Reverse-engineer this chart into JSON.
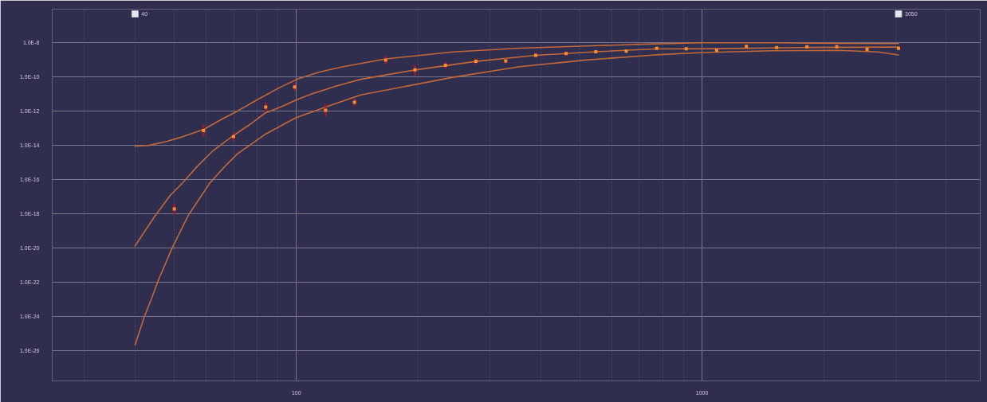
{
  "chart_data": {
    "type": "scatter",
    "log": "xy",
    "grid": true,
    "marker": "square",
    "line_style": "solid",
    "xlim": [
      25,
      4850
    ],
    "ylim": [
      1.7e-28,
      8.9e-07
    ],
    "xticks": [
      100,
      1000
    ],
    "yticks": [
      {
        "value": 1e-08,
        "label": "1.0E-8"
      },
      {
        "value": 1e-10,
        "label": "1.0E-10"
      },
      {
        "value": 1e-12,
        "label": "1.0E-12"
      },
      {
        "value": 1e-14,
        "label": "1.0E-14"
      },
      {
        "value": 1e-16,
        "label": "1.0E-16"
      },
      {
        "value": 1e-18,
        "label": "1.0E-18"
      },
      {
        "value": 1e-20,
        "label": "1.0E-20"
      },
      {
        "value": 1e-22,
        "label": "1.0E-22"
      },
      {
        "value": 1e-24,
        "label": "1.0E-24"
      },
      {
        "value": 1e-26,
        "label": "1.0E-26"
      }
    ],
    "annotations": [
      {
        "text": "40",
        "x": 40
      },
      {
        "text": "3050",
        "x": 3050
      }
    ],
    "series": [
      {
        "type": "line",
        "marker": "none",
        "color": "#c0683a",
        "x": [
          40,
          43.3,
          48,
          52.4,
          59.1,
          65.6,
          71.6,
          80.9,
          91.4,
          101,
          114,
          129,
          144,
          166,
          243,
          355,
          518,
          766,
          1005,
          1486,
          2168,
          3050
        ],
        "values": [
          8.9e-15,
          9.8e-15,
          1.7e-14,
          3.1e-14,
          8.5e-14,
          3.4e-13,
          1e-12,
          5.2e-12,
          2.5e-11,
          7.6e-11,
          1.9e-10,
          3.7e-10,
          6e-10,
          1.1e-09,
          2.8e-09,
          4.7e-09,
          6.3e-09,
          8.3e-09,
          9.7e-09,
          9.7e-09,
          8.9e-09,
          8.7e-09
        ]
      },
      {
        "type": "line",
        "marker": "none",
        "color": "#c0683a",
        "x": [
          40,
          44.8,
          48.9,
          52.4,
          57.1,
          62.3,
          69.2,
          76.7,
          83.7,
          91.4,
          99.6,
          109,
          125,
          144,
          196,
          277,
          389,
          547,
          766,
          1100,
          1729,
          3050
        ],
        "values": [
          1.3e-20,
          7.4e-19,
          1.2e-17,
          6.3e-17,
          6.2e-16,
          4.8e-15,
          3.1e-14,
          1.6e-13,
          7.6e-13,
          1.7e-12,
          4.3e-12,
          9.8e-12,
          2.8e-11,
          7.1e-11,
          2.5e-10,
          7.9e-10,
          1.8e-09,
          2.9e-09,
          4.2e-09,
          4.4e-09,
          5.1e-09,
          5.4e-09
        ]
      },
      {
        "type": "line",
        "marker": "none",
        "color": "#c0683a",
        "x": [
          40,
          42.1,
          44,
          45.6,
          49.3,
          54.2,
          61.2,
          66.8,
          71.6,
          83.7,
          99.6,
          121,
          144,
          243,
          355,
          518,
          766,
          1005,
          1486,
          2168,
          2718,
          3050
        ],
        "values": [
          2.1e-26,
          8.5e-25,
          1.2e-23,
          1.2e-22,
          9.1e-21,
          8.5e-19,
          6.3e-17,
          6.2e-16,
          3.2e-15,
          4.3e-14,
          4e-13,
          2.1e-12,
          8.7e-12,
          9.3e-11,
          3.9e-10,
          9.5e-10,
          1.9e-09,
          2.6e-09,
          3.3e-09,
          3.5e-09,
          2.8e-09,
          1.9e-09
        ]
      },
      {
        "color": "#ff8a2a",
        "x": [
          50,
          59,
          70,
          84,
          99,
          118,
          139,
          166,
          196,
          233,
          277,
          328,
          389,
          462,
          547,
          650,
          773,
          914,
          1086,
          1286,
          1527,
          1814,
          2148,
          2552,
          3050
        ],
        "values": [
          1.9e-18,
          7.1e-14,
          3.2e-14,
          1.7e-12,
          2.5e-11,
          1.1e-12,
          3.2e-12,
          9.5e-10,
          2.5e-10,
          4.7e-10,
          7.9e-10,
          8.5e-10,
          1.8e-09,
          2.3e-09,
          2.9e-09,
          3.1e-09,
          4.6e-09,
          4.3e-09,
          3.5e-09,
          6e-09,
          5.1e-09,
          5.6e-09,
          5.6e-09,
          4e-09,
          4.6e-09
        ],
        "errors": [
          [
            8.9e-19,
            3.9e-18
          ],
          [
            3.2e-14,
            1.6e-13
          ],
          [
            1.8e-14,
            5.8e-14
          ],
          [
            9.1e-13,
            3.2e-12
          ],
          [
            1.5e-11,
            4.3e-11
          ],
          [
            5e-13,
            2.6e-12
          ],
          [
            1.9e-12,
            5.2e-12
          ],
          [
            5.4e-10,
            1.7e-09
          ],
          [
            1.2e-10,
            4.9e-10
          ],
          [
            3e-10,
            7.2e-10
          ],
          [
            5.1e-10,
            1.2e-09
          ],
          [
            6.2e-10,
            1.2e-09
          ],
          [
            1.3e-09,
            2.6e-09
          ],
          [
            1.7e-09,
            3e-09
          ],
          null,
          null,
          null,
          null,
          null,
          null,
          null,
          null,
          null,
          null,
          null
        ]
      }
    ]
  }
}
